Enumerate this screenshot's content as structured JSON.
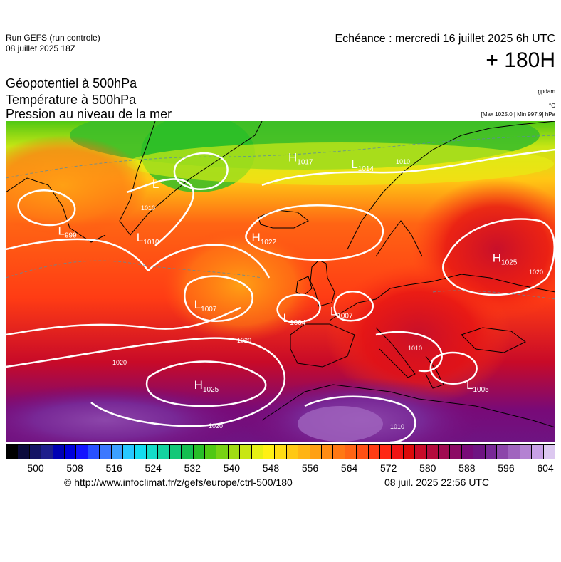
{
  "header": {
    "run_title": "Run GEFS (run controle)",
    "run_date": "08 juillet 2025 18Z",
    "echeance": "Echéance : mercredi 16 juillet 2025 6h UTC",
    "lead_time": "+ 180H"
  },
  "parameters": {
    "line1": "Géopotentiel à 500hPa",
    "line2": "Température à 500hPa",
    "line3": "Pression au niveau de la mer"
  },
  "units": {
    "geopotential": "gpdam",
    "temperature": "°C",
    "pressure_range": "[Max 1025.0 | Min 997.9] hPa"
  },
  "pressure_centers": [
    {
      "type": "H",
      "value": "1022",
      "lon": -13,
      "lat": 60
    },
    {
      "type": "H",
      "value": "1025",
      "lon": 33,
      "lat": 57
    },
    {
      "type": "H",
      "value": "1025",
      "lon": -24,
      "lat": 38
    },
    {
      "type": "H",
      "value": "1017",
      "lon": -6,
      "lat": 72
    },
    {
      "type": "L",
      "value": "1007",
      "lon": -24,
      "lat": 50
    },
    {
      "type": "L",
      "value": "1004",
      "lon": -7,
      "lat": 48
    },
    {
      "type": "L",
      "value": "1007",
      "lon": 2,
      "lat": 49
    },
    {
      "type": "L",
      "value": "1005",
      "lon": 28,
      "lat": 38
    },
    {
      "type": "L",
      "value": "1014",
      "lon": 6,
      "lat": 71
    },
    {
      "type": "L",
      "value": "999",
      "lon": -50,
      "lat": 61
    },
    {
      "type": "L",
      "value": "",
      "lon": -32,
      "lat": 68
    },
    {
      "type": "L",
      "value": "1010",
      "lon": -35,
      "lat": 60
    }
  ],
  "isobar_labels": [
    "1020",
    "1020",
    "1020",
    "1010",
    "1010",
    "1010",
    "1020",
    "1010"
  ],
  "colorbar": {
    "ticks": [
      "500",
      "508",
      "516",
      "524",
      "532",
      "540",
      "548",
      "556",
      "564",
      "572",
      "580",
      "588",
      "596",
      "604"
    ],
    "colors": [
      "#000000",
      "#0a0a3c",
      "#141464",
      "#1e1e8c",
      "#0000b4",
      "#0000dc",
      "#1414ff",
      "#2850ff",
      "#3c78ff",
      "#3ca0ff",
      "#28c8ff",
      "#14dcf0",
      "#14dcc8",
      "#14d2a0",
      "#14c878",
      "#14be50",
      "#28be28",
      "#50c814",
      "#78d214",
      "#a0dc14",
      "#c8e614",
      "#e6f014",
      "#fff014",
      "#ffdc14",
      "#ffc814",
      "#ffb414",
      "#ffa014",
      "#ff8c14",
      "#ff7814",
      "#ff6414",
      "#ff5014",
      "#ff3c14",
      "#ff2814",
      "#f01414",
      "#dc0a0a",
      "#c80a28",
      "#b40a3c",
      "#a00a50",
      "#8c0a64",
      "#780a78",
      "#6e1482",
      "#782896",
      "#8c46aa",
      "#a064be",
      "#b482d2",
      "#c8a0e6",
      "#dcc8f0"
    ]
  },
  "footer": {
    "source": "© http://www.infoclimat.fr/z/gefs/europe/ctrl-500/180",
    "generated": "08 juil. 2025 22:56 UTC"
  }
}
